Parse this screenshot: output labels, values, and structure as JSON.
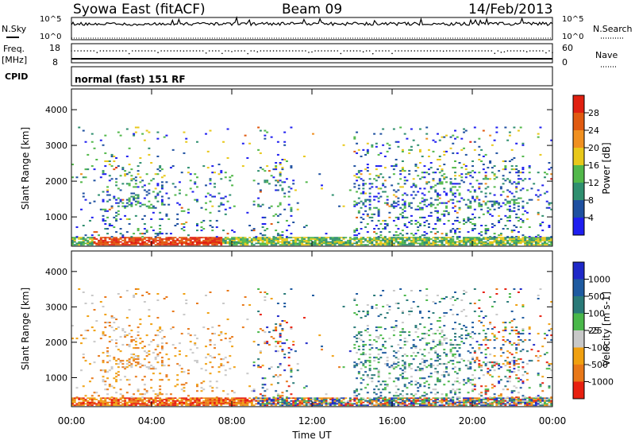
{
  "header": {
    "station": "Syowa East (fitACF)",
    "beam": "Beam 09",
    "date": "14/Feb/2013"
  },
  "chart_data": [
    {
      "type": "line",
      "name": "nsky-nsearch-strip",
      "left_label": "N.Sky",
      "right_label": "N.Search",
      "left_ticks": [
        "10^5",
        "10^0"
      ],
      "right_ticks": [
        "10^5",
        "10^0"
      ]
    },
    {
      "type": "scatter",
      "name": "freq-nave-strip",
      "left_label": "Freq.",
      "left_unit": "[MHz]",
      "right_label": "Nave",
      "left_ticks": [
        "18",
        "8"
      ],
      "right_ticks": [
        "60",
        "0"
      ],
      "freq_mhz": 12
    },
    {
      "type": "table",
      "name": "cpid-strip",
      "left_label": "CPID",
      "program": "normal (fast) 151 RF"
    },
    {
      "type": "heatmap",
      "name": "power",
      "ylabel": "Slant Range [km]",
      "xlabel": "Time UT",
      "yticks": [
        1000,
        2000,
        3000,
        4000
      ],
      "ylim": [
        180,
        4580
      ],
      "colorbar_label": "Power [dB]",
      "colorbar_ticks": [
        "4",
        "8",
        "12",
        "16",
        "20",
        "24",
        "28"
      ],
      "colorbar_colors": [
        "#1e1ef0",
        "#1e50a0",
        "#2f8f6f",
        "#52b84a",
        "#e8c81a",
        "#f09020",
        "#e05a10",
        "#e02010"
      ]
    },
    {
      "type": "heatmap",
      "name": "velocity",
      "ylabel": "Slant Range [km]",
      "xlabel": "Time UT",
      "yticks": [
        1000,
        2000,
        3000,
        4000
      ],
      "ylim": [
        180,
        4580
      ],
      "colorbar_label": "Velocity [m s-1]",
      "colorbar_ticks": [
        "1000",
        "500",
        "100",
        "25",
        "-25",
        "-100",
        "-500",
        "-1000"
      ],
      "colorbar_colors": [
        "#1e28c8",
        "#1e5aa0",
        "#2a7a78",
        "#4ab84a",
        "#c8c8c8",
        "#f0a010",
        "#e87818",
        "#e82010"
      ]
    }
  ],
  "time_axis": {
    "label": "Time UT",
    "ticks": [
      "00:00",
      "04:00",
      "08:00",
      "12:00",
      "16:00",
      "20:00",
      "00:00"
    ]
  }
}
